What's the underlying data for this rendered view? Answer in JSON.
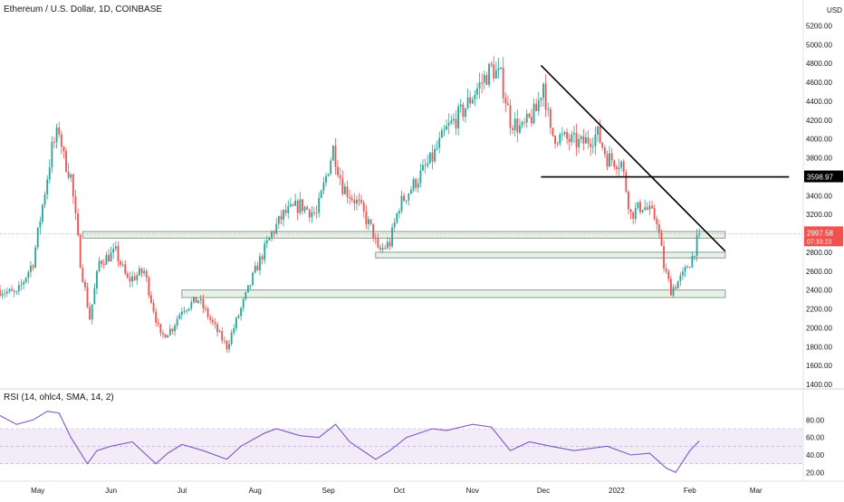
{
  "chart_data": [
    {
      "type": "candlestick",
      "title": "Ethereum / U.S. Dollar, 1D, COINBASE",
      "currency_label": "USD",
      "ylim": [
        1400,
        5300
      ],
      "y_ticks": [
        "5200.00",
        "5000.00",
        "4800.00",
        "4600.00",
        "4400.00",
        "4200.00",
        "4000.00",
        "3800.00",
        "3600.00",
        "3400.00",
        "3200.00",
        "3000.00",
        "2800.00",
        "2600.00",
        "2400.00",
        "2200.00",
        "2000.00",
        "1800.00",
        "1600.00",
        "1400.00"
      ],
      "x_ticks": [
        "May",
        "Jun",
        "Jul",
        "Aug",
        "Sep",
        "Oct",
        "Nov",
        "Dec",
        "2022",
        "Feb",
        "Mar"
      ],
      "up_color": "#26a69a",
      "down_color": "#ef5350",
      "last_price_label": "2997.58",
      "countdown_label": "07:33:23",
      "horizontal_level_label": "3598.97",
      "horizontal_level": 3598.97,
      "last_price": 2997.58,
      "close_path": [
        [
          "2021-04-15",
          2400
        ],
        [
          "2021-04-22",
          2350
        ],
        [
          "2021-04-29",
          2700
        ],
        [
          "2021-05-03",
          3300
        ],
        [
          "2021-05-07",
          3900
        ],
        [
          "2021-05-10",
          4100
        ],
        [
          "2021-05-12",
          3800
        ],
        [
          "2021-05-15",
          3600
        ],
        [
          "2021-05-19",
          2700
        ],
        [
          "2021-05-23",
          2100
        ],
        [
          "2021-05-27",
          2700
        ],
        [
          "2021-06-03",
          2800
        ],
        [
          "2021-06-08",
          2500
        ],
        [
          "2021-06-15",
          2600
        ],
        [
          "2021-06-22",
          1900
        ],
        [
          "2021-06-27",
          2000
        ],
        [
          "2021-07-01",
          2200
        ],
        [
          "2021-07-08",
          2300
        ],
        [
          "2021-07-15",
          2000
        ],
        [
          "2021-07-20",
          1800
        ],
        [
          "2021-07-26",
          2200
        ],
        [
          "2021-08-01",
          2600
        ],
        [
          "2021-08-08",
          3000
        ],
        [
          "2021-08-13",
          3200
        ],
        [
          "2021-08-20",
          3300
        ],
        [
          "2021-08-27",
          3200
        ],
        [
          "2021-09-03",
          3900
        ],
        [
          "2021-09-07",
          3500
        ],
        [
          "2021-09-14",
          3300
        ],
        [
          "2021-09-20",
          3000
        ],
        [
          "2021-09-22",
          2800
        ],
        [
          "2021-09-27",
          2900
        ],
        [
          "2021-10-01",
          3300
        ],
        [
          "2021-10-08",
          3550
        ],
        [
          "2021-10-15",
          3800
        ],
        [
          "2021-10-21",
          4100
        ],
        [
          "2021-10-28",
          4300
        ],
        [
          "2021-11-02",
          4500
        ],
        [
          "2021-11-09",
          4750
        ],
        [
          "2021-11-13",
          4650
        ],
        [
          "2021-11-17",
          4200
        ],
        [
          "2021-11-22",
          4100
        ],
        [
          "2021-11-28",
          4300
        ],
        [
          "2021-12-01",
          4600
        ],
        [
          "2021-12-04",
          4050
        ],
        [
          "2021-12-10",
          4000
        ],
        [
          "2021-12-17",
          3950
        ],
        [
          "2021-12-24",
          4050
        ],
        [
          "2021-12-28",
          3800
        ],
        [
          "2022-01-03",
          3750
        ],
        [
          "2022-01-07",
          3200
        ],
        [
          "2022-01-12",
          3300
        ],
        [
          "2022-01-18",
          3150
        ],
        [
          "2022-01-21",
          2650
        ],
        [
          "2022-01-24",
          2400
        ],
        [
          "2022-01-29",
          2550
        ],
        [
          "2022-02-02",
          2750
        ],
        [
          "2022-02-05",
          2997.58
        ]
      ],
      "support_zones": [
        {
          "from": "2021-05-20",
          "to": "2022-02-16",
          "low": 2950,
          "high": 3020
        },
        {
          "from": "2021-09-21",
          "to": "2022-02-16",
          "low": 2740,
          "high": 2800
        },
        {
          "from": "2021-07-01",
          "to": "2022-02-16",
          "low": 2320,
          "high": 2400
        }
      ],
      "trend_lines": [
        {
          "from": [
            "2021-11-30",
            4780
          ],
          "to": [
            "2022-02-16",
            2810
          ]
        },
        {
          "from": [
            "2021-11-30",
            3598.97
          ],
          "to": [
            "2022-03-15",
            3598.97
          ]
        }
      ]
    },
    {
      "type": "line",
      "title": "RSI (14, ohlc4, SMA, 14, 2)",
      "ylim": [
        10,
        100
      ],
      "y_ticks": [
        "80.00",
        "60.00",
        "40.00",
        "20.00"
      ],
      "band": [
        30,
        70
      ],
      "line_color": "#7e57c2",
      "band_color": "#ede7f6",
      "x": [
        "2021-04-15",
        "2021-04-22",
        "2021-04-29",
        "2021-05-05",
        "2021-05-10",
        "2021-05-15",
        "2021-05-22",
        "2021-05-26",
        "2021-06-01",
        "2021-06-10",
        "2021-06-20",
        "2021-06-25",
        "2021-07-01",
        "2021-07-10",
        "2021-07-20",
        "2021-07-26",
        "2021-08-05",
        "2021-08-10",
        "2021-08-20",
        "2021-08-28",
        "2021-09-04",
        "2021-09-10",
        "2021-09-21",
        "2021-09-27",
        "2021-10-04",
        "2021-10-15",
        "2021-10-21",
        "2021-11-01",
        "2021-11-09",
        "2021-11-17",
        "2021-11-25",
        "2021-12-04",
        "2021-12-14",
        "2021-12-28",
        "2022-01-07",
        "2022-01-15",
        "2022-01-22",
        "2022-01-26",
        "2022-02-01",
        "2022-02-05"
      ],
      "y": [
        85,
        75,
        80,
        90,
        88,
        60,
        30,
        45,
        50,
        55,
        30,
        42,
        52,
        45,
        35,
        50,
        65,
        70,
        62,
        60,
        75,
        55,
        35,
        45,
        60,
        70,
        68,
        75,
        72,
        45,
        55,
        50,
        45,
        50,
        40,
        42,
        25,
        20,
        45,
        56
      ]
    }
  ]
}
